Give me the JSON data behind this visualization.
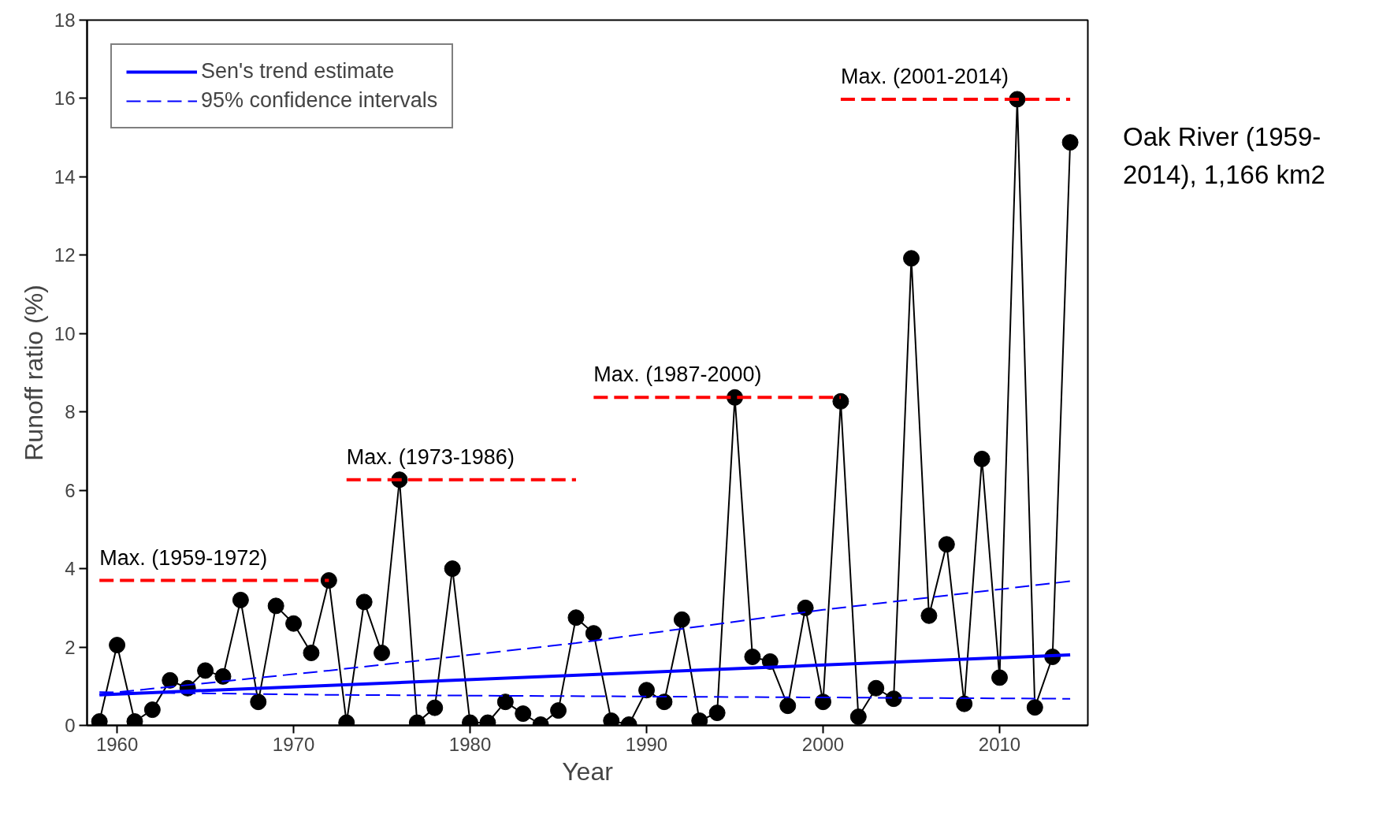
{
  "chart_data": {
    "type": "line",
    "xlabel": "Year",
    "ylabel": "Runoff ratio (%)",
    "x": [
      1959,
      1960,
      1961,
      1962,
      1963,
      1964,
      1965,
      1966,
      1967,
      1968,
      1969,
      1970,
      1971,
      1972,
      1973,
      1974,
      1975,
      1976,
      1977,
      1978,
      1979,
      1980,
      1981,
      1982,
      1983,
      1984,
      1985,
      1986,
      1987,
      1988,
      1989,
      1990,
      1991,
      1992,
      1993,
      1994,
      1995,
      1996,
      1997,
      1998,
      1999,
      2000,
      2001,
      2002,
      2003,
      2004,
      2005,
      2006,
      2007,
      2008,
      2009,
      2010,
      2011,
      2012,
      2013,
      2014
    ],
    "series": [
      {
        "color": "#000000",
        "marker": "circle",
        "line_style": "solid",
        "values": [
          0.1,
          2.05,
          0.1,
          0.4,
          1.15,
          0.95,
          1.4,
          1.25,
          3.2,
          0.6,
          3.05,
          2.6,
          1.85,
          3.7,
          0.07,
          3.15,
          1.85,
          6.27,
          0.07,
          0.45,
          4.0,
          0.07,
          0.07,
          0.6,
          0.3,
          0.02,
          0.38,
          2.75,
          2.35,
          0.12,
          0.02,
          0.9,
          0.6,
          2.7,
          0.12,
          0.32,
          8.37,
          1.75,
          1.63,
          0.5,
          3.0,
          0.6,
          8.27,
          0.22,
          0.95,
          0.68,
          11.92,
          2.8,
          4.62,
          0.55,
          6.8,
          1.22,
          15.98,
          0.46,
          1.75,
          14.88
        ]
      },
      {
        "name": "Sen's trend estimate",
        "color": "#0000ff",
        "marker": "none",
        "line_style": "solid",
        "x": [
          1959,
          2014
        ],
        "values": [
          0.78,
          1.8
        ]
      },
      {
        "name": "95% confidence intervals",
        "color": "#0000ff",
        "marker": "none",
        "line_style": "dashed",
        "x": [
          1959,
          1972,
          1986,
          2000,
          2014
        ],
        "values": [
          0.8,
          1.4,
          2.1,
          2.95,
          3.68
        ]
      },
      {
        "color": "#0000ff",
        "marker": "none",
        "line_style": "dashed",
        "x": [
          1959,
          1972,
          2014
        ],
        "values": [
          0.85,
          0.78,
          0.68
        ]
      },
      {
        "color": "#ff0000",
        "marker": "none",
        "line_style": "dashed",
        "x": [
          1959,
          1972
        ],
        "values": [
          3.7,
          3.7
        ]
      },
      {
        "color": "#ff0000",
        "marker": "none",
        "line_style": "dashed",
        "x": [
          1973,
          1986
        ],
        "values": [
          6.27,
          6.27
        ]
      },
      {
        "color": "#ff0000",
        "marker": "none",
        "line_style": "dashed",
        "x": [
          1987,
          2001
        ],
        "values": [
          8.37,
          8.37
        ]
      },
      {
        "color": "#ff0000",
        "marker": "none",
        "line_style": "dashed",
        "x": [
          2001,
          2014
        ],
        "values": [
          15.98,
          15.98
        ]
      }
    ],
    "annotations": [
      {
        "text": "Max. (1959-1972)",
        "x": 1959,
        "y": 3.7
      },
      {
        "text": "Max. (1973-1986)",
        "x": 1973,
        "y": 6.27
      },
      {
        "text": "Max. (1987-2000)",
        "x": 1987,
        "y": 8.37
      },
      {
        "text": "Max. (2001-2014)",
        "x": 2001,
        "y": 15.98
      },
      "Oak River (1959-2014), 1,166 km2"
    ],
    "xlim": [
      1958.3,
      2015
    ],
    "ylim": [
      0,
      18
    ],
    "xticks": [
      1960,
      1970,
      1980,
      1990,
      2000,
      2010
    ],
    "yticks": [
      0,
      2,
      4,
      6,
      8,
      10,
      12,
      14,
      16,
      18
    ],
    "grid": false,
    "legend": "top left"
  }
}
